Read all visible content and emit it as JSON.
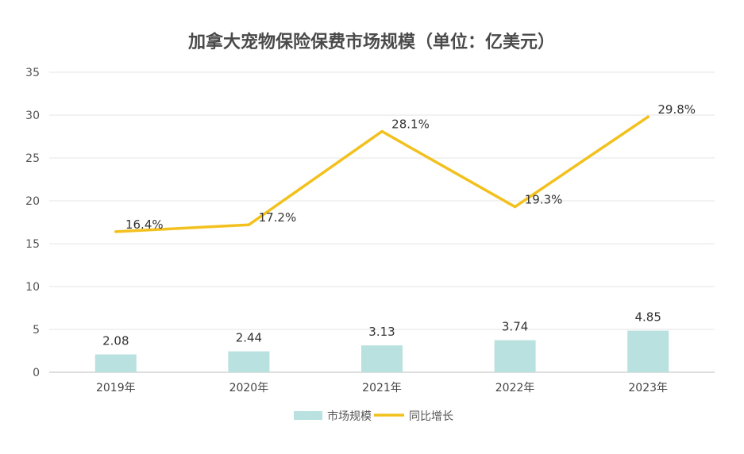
{
  "chart_data": {
    "type": "bar",
    "title": "加拿大宠物保险保费市场规模（单位：亿美元）",
    "categories": [
      "2019年",
      "2020年",
      "2021年",
      "2022年",
      "2023年"
    ],
    "ylim": [
      0,
      35
    ],
    "yticks": [
      0,
      5,
      10,
      15,
      20,
      25,
      30,
      35
    ],
    "grid": true,
    "legend_position": "bottom-center",
    "series": [
      {
        "name": "市场规模",
        "type": "bar",
        "values": [
          2.08,
          2.44,
          3.13,
          3.74,
          4.85
        ],
        "labels": [
          "2.08",
          "2.44",
          "3.13",
          "3.74",
          "4.85"
        ],
        "color": "#b9e1df"
      },
      {
        "name": "同比增长",
        "type": "line",
        "values": [
          16.4,
          17.2,
          28.1,
          19.3,
          29.8
        ],
        "labels": [
          "16.4%",
          "17.2%",
          "28.1%",
          "19.3%",
          "29.8%"
        ],
        "color": "#f3c11d"
      }
    ]
  }
}
